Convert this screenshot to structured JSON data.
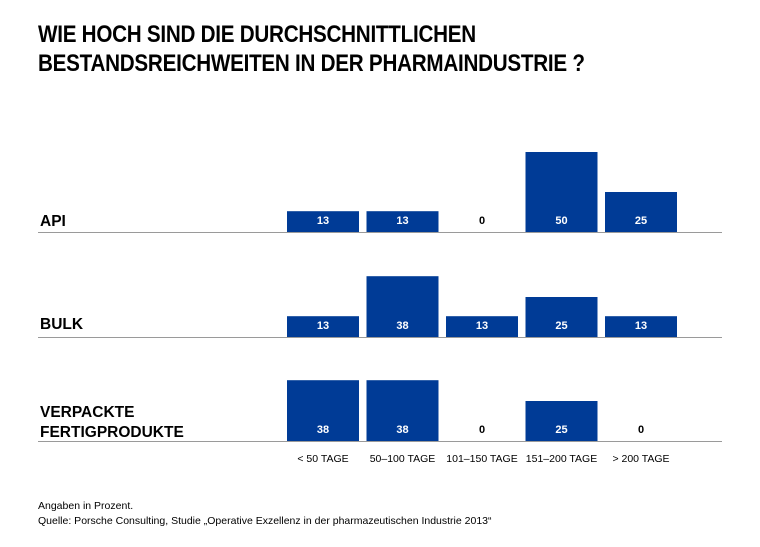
{
  "title": {
    "line1": "WIE HOCH SIND DIE DURCHSCHNITTLICHEN",
    "line2": "BESTANDSREICHWEITEN IN DER PHARMAINDUSTRIE ?"
  },
  "chart_data": {
    "type": "bar",
    "title": "WIE HOCH SIND DIE DURCHSCHNITTLICHEN BESTANDSREICHWEITEN IN DER PHARMAINDUSTRIE ?",
    "categories": [
      "< 50 TAGE",
      "50–100 TAGE",
      "101–150 TAGE",
      "151–200 TAGE",
      "> 200 TAGE"
    ],
    "series": [
      {
        "name": "API",
        "values": [
          13,
          13,
          0,
          50,
          25
        ]
      },
      {
        "name": "BULK",
        "values": [
          13,
          38,
          13,
          25,
          13
        ]
      },
      {
        "name": "VERPACKTE FERTIGPRODUKTE",
        "values": [
          38,
          38,
          0,
          25,
          0
        ]
      }
    ],
    "unit": "%",
    "ylim": [
      0,
      50
    ],
    "xlabel": "",
    "ylabel": "",
    "grid": false,
    "legend": "none",
    "bar_color": "#003b96"
  },
  "footer": {
    "note": "Angaben in Prozent.",
    "source": "Quelle: Porsche Consulting, Studie „Operative Exzellenz in der pharmazeutischen Industrie 2013“"
  }
}
